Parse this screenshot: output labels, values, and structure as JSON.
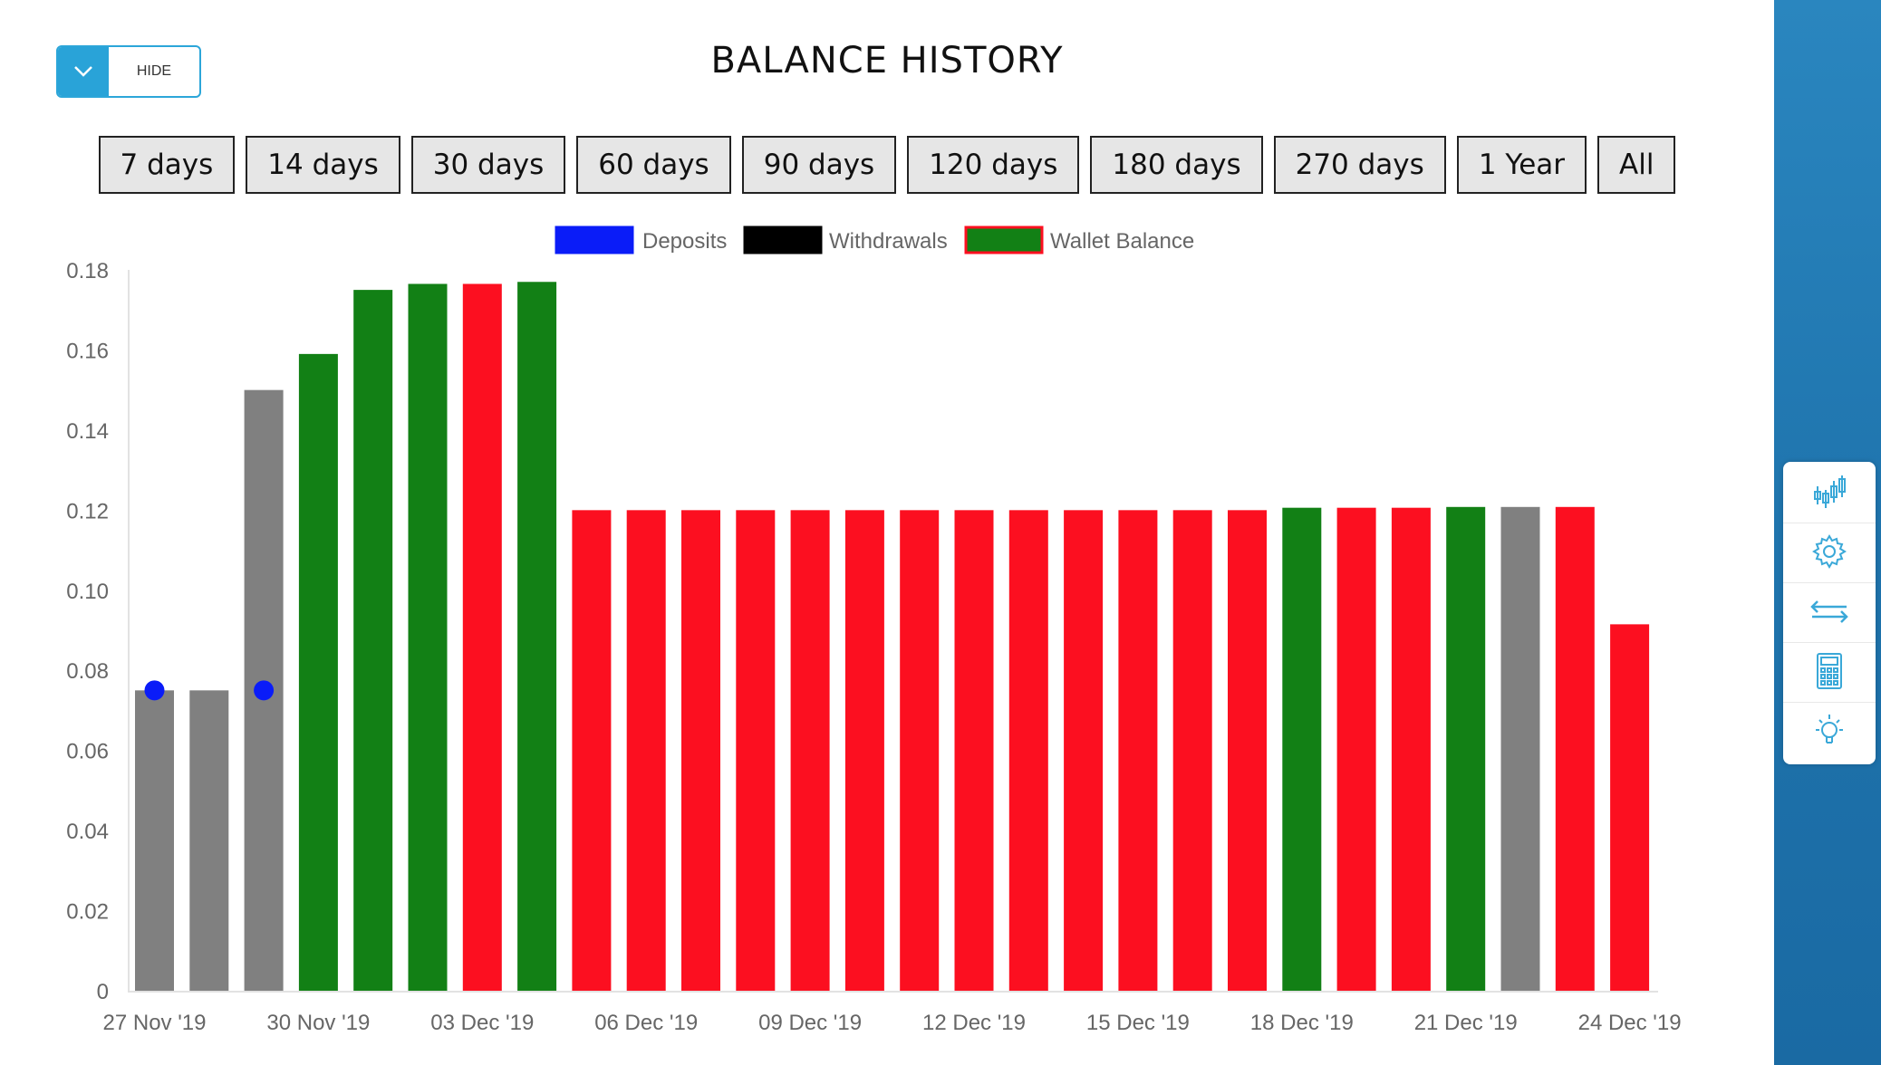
{
  "toggle": {
    "label": "HIDE",
    "icon": "chevron-down-icon"
  },
  "title": "BALANCE HISTORY",
  "ranges": [
    "7 days",
    "14 days",
    "30 days",
    "60 days",
    "90 days",
    "120 days",
    "180 days",
    "270 days",
    "1 Year",
    "All"
  ],
  "colors": {
    "accent": "#29a3d8",
    "green": "#128015",
    "red": "#fc0f20",
    "gray": "#808080",
    "deposit": "#0a1cf8",
    "withdrawal": "#000000"
  },
  "tools": [
    "chart-icon",
    "gear-icon",
    "transfer-arrows-icon",
    "calculator-icon",
    "lightbulb-icon"
  ],
  "chart_data": {
    "type": "bar",
    "title": "",
    "xlabel": "",
    "ylabel": "",
    "ylim": [
      0,
      0.18
    ],
    "yticks": [
      "0",
      "0.02",
      "0.04",
      "0.06",
      "0.08",
      "0.10",
      "0.12",
      "0.14",
      "0.16",
      "0.18"
    ],
    "xticks": [
      "27 Nov '19",
      "30 Nov '19",
      "03 Dec '19",
      "06 Dec '19",
      "09 Dec '19",
      "12 Dec '19",
      "15 Dec '19",
      "18 Dec '19",
      "21 Dec '19",
      "24 Dec '19"
    ],
    "legend": [
      "Deposits",
      "Withdrawals",
      "Wallet Balance"
    ],
    "legend_position": "top",
    "categories": [
      "27 Nov '19",
      "28 Nov '19",
      "29 Nov '19",
      "30 Nov '19",
      "01 Dec '19",
      "02 Dec '19",
      "03 Dec '19",
      "04 Dec '19",
      "05 Dec '19",
      "06 Dec '19",
      "07 Dec '19",
      "08 Dec '19",
      "09 Dec '19",
      "10 Dec '19",
      "11 Dec '19",
      "12 Dec '19",
      "13 Dec '19",
      "14 Dec '19",
      "15 Dec '19",
      "16 Dec '19",
      "17 Dec '19",
      "18 Dec '19",
      "19 Dec '19",
      "20 Dec '19",
      "21 Dec '19",
      "22 Dec '19",
      "23 Dec '19",
      "24 Dec '19"
    ],
    "series": [
      {
        "name": "Wallet Balance",
        "values": [
          0.075,
          0.075,
          0.15,
          0.159,
          0.175,
          0.1765,
          0.1765,
          0.177,
          0.12,
          0.12,
          0.12,
          0.12,
          0.12,
          0.12,
          0.12,
          0.12,
          0.12,
          0.12,
          0.12,
          0.12,
          0.12,
          0.1206,
          0.1206,
          0.1206,
          0.1208,
          0.1208,
          0.1208,
          0.0915
        ],
        "bar_colors": [
          "gray",
          "gray",
          "gray",
          "green",
          "green",
          "green",
          "red",
          "green",
          "red",
          "red",
          "red",
          "red",
          "red",
          "red",
          "red",
          "red",
          "red",
          "red",
          "red",
          "red",
          "red",
          "green",
          "red",
          "red",
          "green",
          "gray",
          "red",
          "red"
        ]
      },
      {
        "name": "Deposits",
        "type": "scatter",
        "points": [
          {
            "x": "27 Nov '19",
            "y": 0.075
          },
          {
            "x": "29 Nov '19",
            "y": 0.075
          }
        ]
      }
    ]
  }
}
